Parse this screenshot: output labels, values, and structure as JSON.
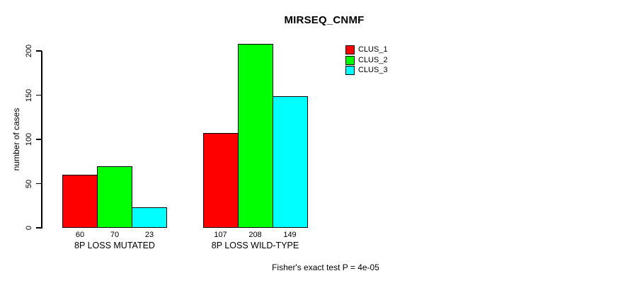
{
  "title": "MIRSEQ_CNMF",
  "footer": "Fisher's exact test P = 4e-05",
  "chart_data": {
    "type": "bar",
    "grouped": true,
    "title": "MIRSEQ_CNMF",
    "ylabel": "number of cases",
    "xlabel": "",
    "categories": [
      "8P LOSS MUTATED",
      "8P LOSS WILD-TYPE"
    ],
    "series": [
      {
        "name": "CLUS_1",
        "color": "#ff0000",
        "values": [
          60,
          107
        ]
      },
      {
        "name": "CLUS_2",
        "color": "#00ff00",
        "values": [
          70,
          208
        ]
      },
      {
        "name": "CLUS_3",
        "color": "#00ffff",
        "values": [
          23,
          149
        ]
      }
    ],
    "bar_value_labels": true,
    "bar_border_color": "#000000",
    "ylim": [
      0,
      200
    ],
    "yticks": [
      0,
      50,
      100,
      150,
      200
    ],
    "grid": false,
    "legend_position": "top-right",
    "annotation": "Fisher's exact test P = 4e-05"
  }
}
